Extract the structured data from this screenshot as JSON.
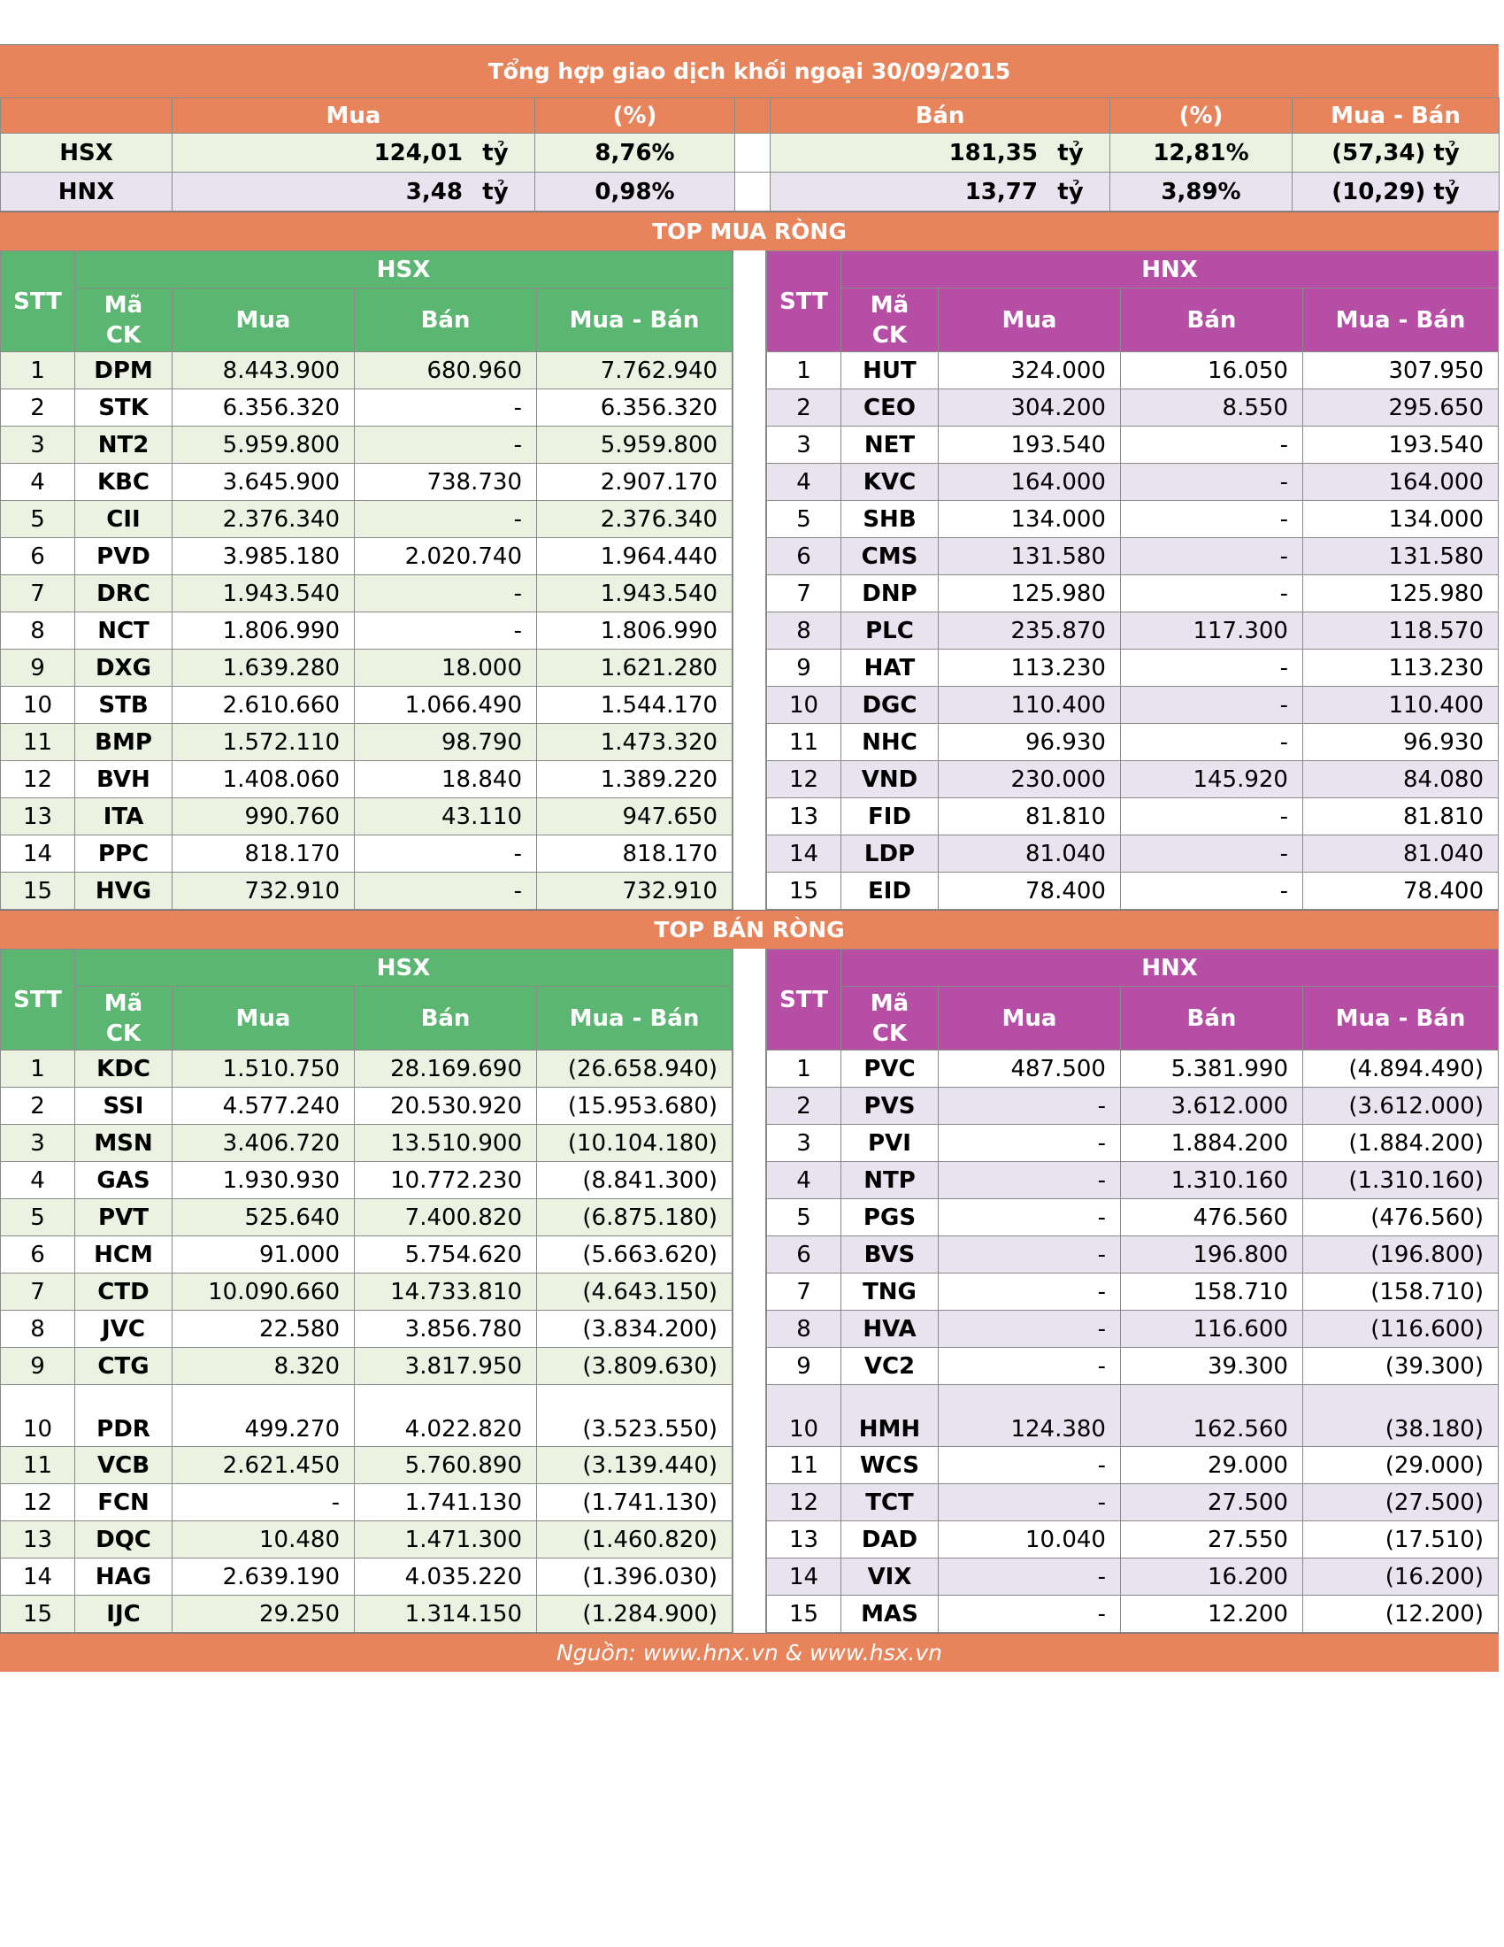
{
  "title": "Tổng hợp giao dịch khối ngoại 30/09/2015",
  "summary": {
    "headers": {
      "buy": "Mua",
      "buy_pct": "(%)",
      "sell": "Bán",
      "sell_pct": "(%)",
      "net": "Mua - Bán"
    },
    "unit": "tỷ",
    "rows": [
      {
        "market": "HSX",
        "buy": "124,01",
        "buy_pct": "8,76%",
        "sell": "181,35",
        "sell_pct": "12,81%",
        "net": "(57,34) tỷ"
      },
      {
        "market": "HNX",
        "buy": "3,48",
        "buy_pct": "0,98%",
        "sell": "13,77",
        "sell_pct": "3,89%",
        "net": "(10,29) tỷ"
      }
    ]
  },
  "columns": {
    "stt": "STT",
    "code_line1": "Mã",
    "code_line2": "CK",
    "buy": "Mua",
    "sell": "Bán",
    "net": "Mua - Bán"
  },
  "top_buy": {
    "heading": "TOP MUA RÒNG",
    "hsx": {
      "label": "HSX",
      "rows": [
        {
          "stt": "1",
          "code": "DPM",
          "buy": "8.443.900",
          "sell": "680.960",
          "net": "7.762.940"
        },
        {
          "stt": "2",
          "code": "STK",
          "buy": "6.356.320",
          "sell": "-",
          "net": "6.356.320"
        },
        {
          "stt": "3",
          "code": "NT2",
          "buy": "5.959.800",
          "sell": "-",
          "net": "5.959.800"
        },
        {
          "stt": "4",
          "code": "KBC",
          "buy": "3.645.900",
          "sell": "738.730",
          "net": "2.907.170"
        },
        {
          "stt": "5",
          "code": "CII",
          "buy": "2.376.340",
          "sell": "-",
          "net": "2.376.340"
        },
        {
          "stt": "6",
          "code": "PVD",
          "buy": "3.985.180",
          "sell": "2.020.740",
          "net": "1.964.440"
        },
        {
          "stt": "7",
          "code": "DRC",
          "buy": "1.943.540",
          "sell": "-",
          "net": "1.943.540"
        },
        {
          "stt": "8",
          "code": "NCT",
          "buy": "1.806.990",
          "sell": "-",
          "net": "1.806.990"
        },
        {
          "stt": "9",
          "code": "DXG",
          "buy": "1.639.280",
          "sell": "18.000",
          "net": "1.621.280"
        },
        {
          "stt": "10",
          "code": "STB",
          "buy": "2.610.660",
          "sell": "1.066.490",
          "net": "1.544.170"
        },
        {
          "stt": "11",
          "code": "BMP",
          "buy": "1.572.110",
          "sell": "98.790",
          "net": "1.473.320"
        },
        {
          "stt": "12",
          "code": "BVH",
          "buy": "1.408.060",
          "sell": "18.840",
          "net": "1.389.220"
        },
        {
          "stt": "13",
          "code": "ITA",
          "buy": "990.760",
          "sell": "43.110",
          "net": "947.650"
        },
        {
          "stt": "14",
          "code": "PPC",
          "buy": "818.170",
          "sell": "-",
          "net": "818.170"
        },
        {
          "stt": "15",
          "code": "HVG",
          "buy": "732.910",
          "sell": "-",
          "net": "732.910"
        }
      ]
    },
    "hnx": {
      "label": "HNX",
      "rows": [
        {
          "stt": "1",
          "code": "HUT",
          "buy": "324.000",
          "sell": "16.050",
          "net": "307.950"
        },
        {
          "stt": "2",
          "code": "CEO",
          "buy": "304.200",
          "sell": "8.550",
          "net": "295.650"
        },
        {
          "stt": "3",
          "code": "NET",
          "buy": "193.540",
          "sell": "-",
          "net": "193.540"
        },
        {
          "stt": "4",
          "code": "KVC",
          "buy": "164.000",
          "sell": "-",
          "net": "164.000"
        },
        {
          "stt": "5",
          "code": "SHB",
          "buy": "134.000",
          "sell": "-",
          "net": "134.000"
        },
        {
          "stt": "6",
          "code": "CMS",
          "buy": "131.580",
          "sell": "-",
          "net": "131.580"
        },
        {
          "stt": "7",
          "code": "DNP",
          "buy": "125.980",
          "sell": "-",
          "net": "125.980"
        },
        {
          "stt": "8",
          "code": "PLC",
          "buy": "235.870",
          "sell": "117.300",
          "net": "118.570"
        },
        {
          "stt": "9",
          "code": "HAT",
          "buy": "113.230",
          "sell": "-",
          "net": "113.230"
        },
        {
          "stt": "10",
          "code": "DGC",
          "buy": "110.400",
          "sell": "-",
          "net": "110.400"
        },
        {
          "stt": "11",
          "code": "NHC",
          "buy": "96.930",
          "sell": "-",
          "net": "96.930"
        },
        {
          "stt": "12",
          "code": "VND",
          "buy": "230.000",
          "sell": "145.920",
          "net": "84.080"
        },
        {
          "stt": "13",
          "code": "FID",
          "buy": "81.810",
          "sell": "-",
          "net": "81.810"
        },
        {
          "stt": "14",
          "code": "LDP",
          "buy": "81.040",
          "sell": "-",
          "net": "81.040"
        },
        {
          "stt": "15",
          "code": "EID",
          "buy": "78.400",
          "sell": "-",
          "net": "78.400"
        }
      ]
    }
  },
  "top_sell": {
    "heading": "TOP BÁN RÒNG",
    "hsx": {
      "label": "HSX",
      "rows": [
        {
          "stt": "1",
          "code": "KDC",
          "buy": "1.510.750",
          "sell": "28.169.690",
          "net": "(26.658.940)"
        },
        {
          "stt": "2",
          "code": "SSI",
          "buy": "4.577.240",
          "sell": "20.530.920",
          "net": "(15.953.680)"
        },
        {
          "stt": "3",
          "code": "MSN",
          "buy": "3.406.720",
          "sell": "13.510.900",
          "net": "(10.104.180)"
        },
        {
          "stt": "4",
          "code": "GAS",
          "buy": "1.930.930",
          "sell": "10.772.230",
          "net": "(8.841.300)"
        },
        {
          "stt": "5",
          "code": "PVT",
          "buy": "525.640",
          "sell": "7.400.820",
          "net": "(6.875.180)"
        },
        {
          "stt": "6",
          "code": "HCM",
          "buy": "91.000",
          "sell": "5.754.620",
          "net": "(5.663.620)"
        },
        {
          "stt": "7",
          "code": "CTD",
          "buy": "10.090.660",
          "sell": "14.733.810",
          "net": "(4.643.150)"
        },
        {
          "stt": "8",
          "code": "JVC",
          "buy": "22.580",
          "sell": "3.856.780",
          "net": "(3.834.200)"
        },
        {
          "stt": "9",
          "code": "CTG",
          "buy": "8.320",
          "sell": "3.817.950",
          "net": "(3.809.630)"
        },
        {
          "stt": "10",
          "code": "PDR",
          "buy": "499.270",
          "sell": "4.022.820",
          "net": "(3.523.550)"
        },
        {
          "stt": "11",
          "code": "VCB",
          "buy": "2.621.450",
          "sell": "5.760.890",
          "net": "(3.139.440)"
        },
        {
          "stt": "12",
          "code": "FCN",
          "buy": "-",
          "sell": "1.741.130",
          "net": "(1.741.130)"
        },
        {
          "stt": "13",
          "code": "DQC",
          "buy": "10.480",
          "sell": "1.471.300",
          "net": "(1.460.820)"
        },
        {
          "stt": "14",
          "code": "HAG",
          "buy": "2.639.190",
          "sell": "4.035.220",
          "net": "(1.396.030)"
        },
        {
          "stt": "15",
          "code": "IJC",
          "buy": "29.250",
          "sell": "1.314.150",
          "net": "(1.284.900)"
        }
      ]
    },
    "hnx": {
      "label": "HNX",
      "rows": [
        {
          "stt": "1",
          "code": "PVC",
          "buy": "487.500",
          "sell": "5.381.990",
          "net": "(4.894.490)"
        },
        {
          "stt": "2",
          "code": "PVS",
          "buy": "-",
          "sell": "3.612.000",
          "net": "(3.612.000)"
        },
        {
          "stt": "3",
          "code": "PVI",
          "buy": "-",
          "sell": "1.884.200",
          "net": "(1.884.200)"
        },
        {
          "stt": "4",
          "code": "NTP",
          "buy": "-",
          "sell": "1.310.160",
          "net": "(1.310.160)"
        },
        {
          "stt": "5",
          "code": "PGS",
          "buy": "-",
          "sell": "476.560",
          "net": "(476.560)"
        },
        {
          "stt": "6",
          "code": "BVS",
          "buy": "-",
          "sell": "196.800",
          "net": "(196.800)"
        },
        {
          "stt": "7",
          "code": "TNG",
          "buy": "-",
          "sell": "158.710",
          "net": "(158.710)"
        },
        {
          "stt": "8",
          "code": "HVA",
          "buy": "-",
          "sell": "116.600",
          "net": "(116.600)"
        },
        {
          "stt": "9",
          "code": "VC2",
          "buy": "-",
          "sell": "39.300",
          "net": "(39.300)"
        },
        {
          "stt": "10",
          "code": "HMH",
          "buy": "124.380",
          "sell": "162.560",
          "net": "(38.180)"
        },
        {
          "stt": "11",
          "code": "WCS",
          "buy": "-",
          "sell": "29.000",
          "net": "(29.000)"
        },
        {
          "stt": "12",
          "code": "TCT",
          "buy": "-",
          "sell": "27.500",
          "net": "(27.500)"
        },
        {
          "stt": "13",
          "code": "DAD",
          "buy": "10.040",
          "sell": "27.550",
          "net": "(17.510)"
        },
        {
          "stt": "14",
          "code": "VIX",
          "buy": "-",
          "sell": "16.200",
          "net": "(16.200)"
        },
        {
          "stt": "15",
          "code": "MAS",
          "buy": "-",
          "sell": "12.200",
          "net": "(12.200)"
        }
      ]
    }
  },
  "source": "Nguồn: www.hnx.vn    &    www.hsx.vn"
}
